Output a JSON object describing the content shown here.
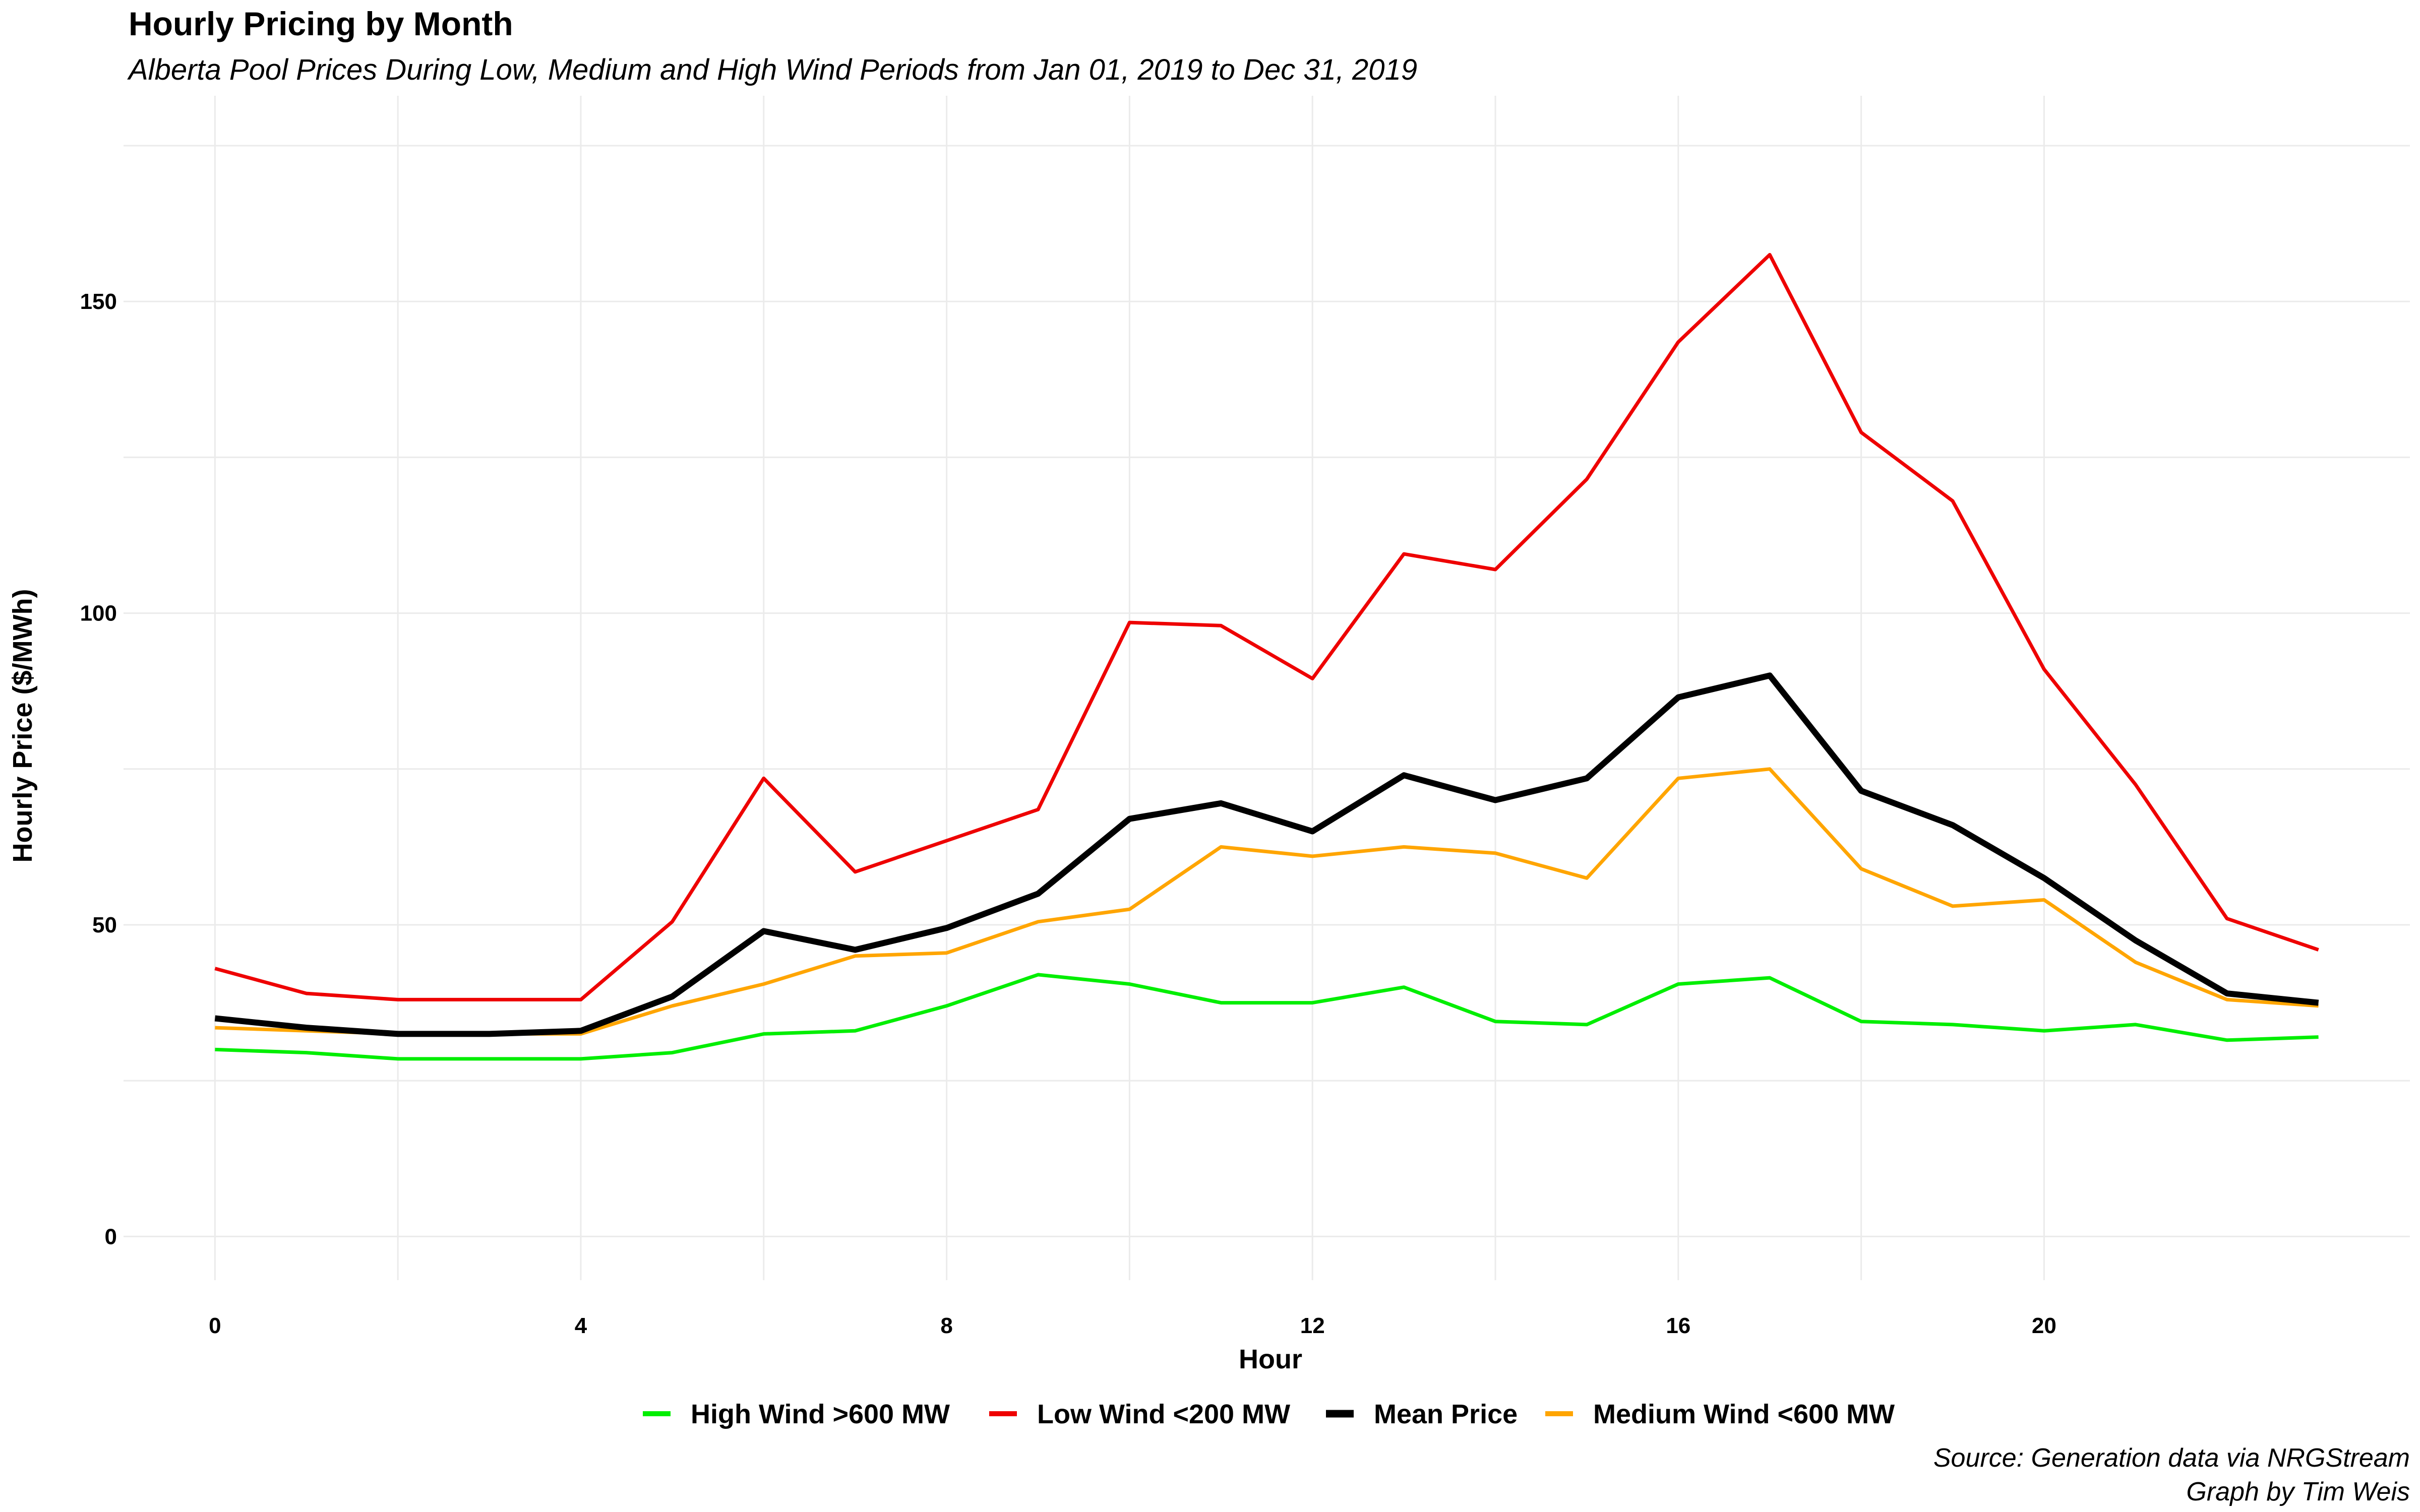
{
  "chart_data": {
    "type": "line",
    "title": "Hourly Pricing by Month",
    "subtitle": "Alberta Pool Prices During Low, Medium and High Wind Periods from Jan 01, 2019 to Dec 31, 2019",
    "xlabel": "Hour",
    "ylabel": "Hourly Price ($/MWh)",
    "xlim": [
      -1,
      24
    ],
    "ylim": [
      -7,
      183
    ],
    "x_ticks": [
      0,
      4,
      8,
      12,
      16,
      20
    ],
    "y_ticks": [
      0,
      50,
      100,
      150
    ],
    "x_tick_labels": [
      "0",
      "4",
      "8",
      "12",
      "16",
      "20"
    ],
    "y_tick_labels": [
      "0",
      "50",
      "100",
      "150"
    ],
    "x": [
      0,
      1,
      2,
      3,
      4,
      5,
      6,
      7,
      8,
      9,
      10,
      11,
      12,
      13,
      14,
      15,
      16,
      17,
      18,
      19,
      20,
      21,
      22,
      23
    ],
    "grid": true,
    "legend_position": "bottom",
    "series": [
      {
        "name": "High Wind >600 MW",
        "color": "#00ee00",
        "width": 7,
        "values": [
          30,
          29.5,
          28.5,
          28.5,
          28.5,
          29.5,
          32.5,
          33,
          37,
          42,
          40.5,
          37.5,
          37.5,
          40,
          34.5,
          34,
          40.5,
          41.5,
          34.5,
          34,
          33,
          34,
          31.5,
          32
        ]
      },
      {
        "name": "Low Wind <200 MW",
        "color": "#ee0000",
        "width": 7,
        "values": [
          43,
          39,
          38,
          38,
          38,
          50.5,
          73.5,
          58.5,
          63.5,
          68.5,
          98.5,
          98,
          89.5,
          109.5,
          107,
          121.5,
          143.5,
          157.5,
          129,
          118,
          91,
          72.5,
          51,
          46
        ]
      },
      {
        "name": "Mean Price",
        "color": "#000000",
        "width": 12,
        "values": [
          35,
          33.5,
          32.5,
          32.5,
          33,
          38.5,
          49,
          46,
          49.5,
          55,
          67,
          69.5,
          65,
          74,
          70,
          73.5,
          86.5,
          90,
          71.5,
          66,
          57.5,
          47.5,
          39,
          37.5
        ]
      },
      {
        "name": "Medium Wind <600 MW",
        "color": "#ffa500",
        "width": 7,
        "values": [
          33.5,
          33,
          32.5,
          32.5,
          32.5,
          37,
          40.5,
          45,
          45.5,
          50.5,
          52.5,
          62.5,
          61,
          62.5,
          61.5,
          57.5,
          73.5,
          75,
          59,
          53,
          54,
          44,
          38,
          37
        ]
      }
    ],
    "caption": [
      "Source: Generation data via NRGStream",
      "Graph by Tim Weis"
    ]
  }
}
